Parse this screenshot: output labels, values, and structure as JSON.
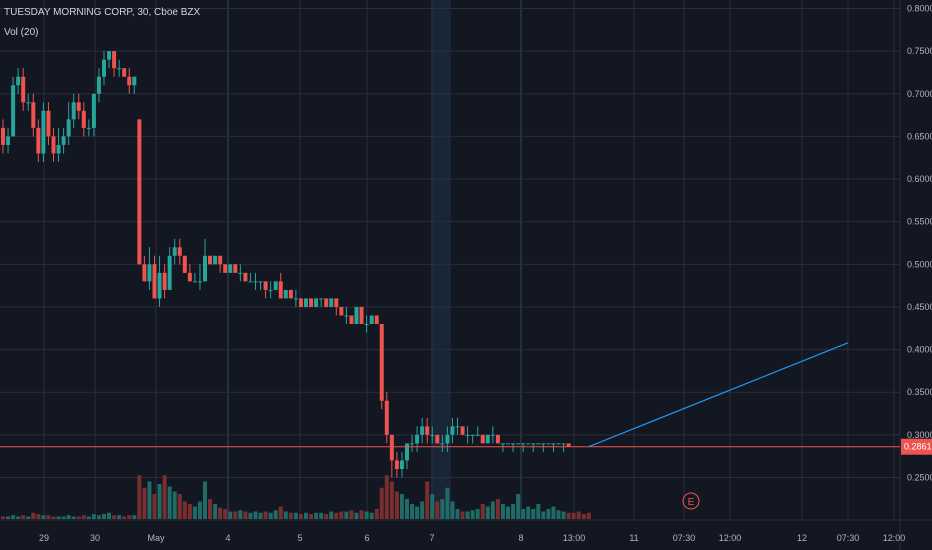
{
  "legend": {
    "title": "TUESDAY MORNING CORP, 30, Cboe BZX",
    "indicator": "Vol (20)"
  },
  "colors": {
    "background": "#131722",
    "grid": "#2a2e39",
    "up": "#26a69a",
    "down": "#ef5350",
    "volume_up": "#1f6b66",
    "volume_down": "#7a2e30",
    "trend_line": "#2196f3",
    "price_line": "#ef5350",
    "session_highlight": "#1e3048",
    "earnings_marker": "#ef5350"
  },
  "current_price_label": "0.2861",
  "earnings_marker_label": "E",
  "chart_data": {
    "type": "candlestick",
    "title": "TUESDAY MORNING CORP, 30, Cboe BZX",
    "indicator": "Vol (20)",
    "y_ticks": [
      "0.8000",
      "0.7500",
      "0.7000",
      "0.6500",
      "0.6000",
      "0.5500",
      "0.5000",
      "0.4500",
      "0.4000",
      "0.3500",
      "0.3000",
      "0.2500"
    ],
    "ylim": [
      0.22,
      0.8
    ],
    "x_ticks": [
      "29",
      "30",
      "May",
      "4",
      "5",
      "6",
      "7",
      "8",
      "13:00",
      "11",
      "07:30",
      "12:00",
      "12",
      "07:30",
      "12:00"
    ],
    "current_price": 0.2861,
    "ohlc": [
      [
        0.66,
        0.67,
        0.63,
        0.64
      ],
      [
        0.64,
        0.66,
        0.63,
        0.65
      ],
      [
        0.65,
        0.72,
        0.65,
        0.71
      ],
      [
        0.71,
        0.73,
        0.7,
        0.72
      ],
      [
        0.72,
        0.73,
        0.68,
        0.69
      ],
      [
        0.69,
        0.7,
        0.68,
        0.69
      ],
      [
        0.69,
        0.7,
        0.65,
        0.66
      ],
      [
        0.66,
        0.67,
        0.62,
        0.63
      ],
      [
        0.63,
        0.69,
        0.62,
        0.68
      ],
      [
        0.68,
        0.69,
        0.64,
        0.65
      ],
      [
        0.65,
        0.66,
        0.62,
        0.63
      ],
      [
        0.63,
        0.66,
        0.62,
        0.64
      ],
      [
        0.64,
        0.66,
        0.63,
        0.65
      ],
      [
        0.65,
        0.69,
        0.64,
        0.67
      ],
      [
        0.67,
        0.7,
        0.66,
        0.69
      ],
      [
        0.69,
        0.7,
        0.67,
        0.68
      ],
      [
        0.68,
        0.69,
        0.65,
        0.66
      ],
      [
        0.66,
        0.67,
        0.65,
        0.66
      ],
      [
        0.66,
        0.7,
        0.65,
        0.7
      ],
      [
        0.7,
        0.73,
        0.69,
        0.72
      ],
      [
        0.72,
        0.75,
        0.71,
        0.74
      ],
      [
        0.74,
        0.75,
        0.73,
        0.75
      ],
      [
        0.75,
        0.75,
        0.72,
        0.73
      ],
      [
        0.73,
        0.74,
        0.72,
        0.73
      ],
      [
        0.73,
        0.73,
        0.72,
        0.72
      ],
      [
        0.72,
        0.73,
        0.7,
        0.71
      ],
      [
        0.71,
        0.72,
        0.7,
        0.72
      ],
      [
        0.67,
        0.67,
        0.5,
        0.5
      ],
      [
        0.5,
        0.51,
        0.48,
        0.48
      ],
      [
        0.48,
        0.52,
        0.47,
        0.5
      ],
      [
        0.5,
        0.51,
        0.46,
        0.46
      ],
      [
        0.46,
        0.51,
        0.45,
        0.49
      ],
      [
        0.49,
        0.5,
        0.46,
        0.47
      ],
      [
        0.47,
        0.52,
        0.47,
        0.51
      ],
      [
        0.51,
        0.53,
        0.5,
        0.52
      ],
      [
        0.52,
        0.53,
        0.5,
        0.51
      ],
      [
        0.51,
        0.51,
        0.49,
        0.49
      ],
      [
        0.49,
        0.5,
        0.48,
        0.48
      ],
      [
        0.48,
        0.49,
        0.48,
        0.48
      ],
      [
        0.48,
        0.5,
        0.47,
        0.48
      ],
      [
        0.48,
        0.53,
        0.48,
        0.51
      ],
      [
        0.51,
        0.51,
        0.5,
        0.5
      ],
      [
        0.5,
        0.51,
        0.5,
        0.51
      ],
      [
        0.51,
        0.51,
        0.49,
        0.5
      ],
      [
        0.5,
        0.5,
        0.49,
        0.49
      ],
      [
        0.49,
        0.5,
        0.49,
        0.5
      ],
      [
        0.5,
        0.5,
        0.49,
        0.49
      ],
      [
        0.49,
        0.5,
        0.48,
        0.49
      ],
      [
        0.49,
        0.49,
        0.48,
        0.48
      ],
      [
        0.48,
        0.49,
        0.48,
        0.48
      ],
      [
        0.48,
        0.49,
        0.47,
        0.48
      ],
      [
        0.48,
        0.48,
        0.47,
        0.48
      ],
      [
        0.48,
        0.48,
        0.46,
        0.47
      ],
      [
        0.47,
        0.48,
        0.46,
        0.47
      ],
      [
        0.47,
        0.48,
        0.47,
        0.48
      ],
      [
        0.48,
        0.49,
        0.46,
        0.46
      ],
      [
        0.46,
        0.47,
        0.46,
        0.47
      ],
      [
        0.47,
        0.47,
        0.46,
        0.46
      ],
      [
        0.46,
        0.47,
        0.45,
        0.46
      ],
      [
        0.46,
        0.46,
        0.45,
        0.45
      ],
      [
        0.45,
        0.46,
        0.45,
        0.46
      ],
      [
        0.46,
        0.46,
        0.45,
        0.45
      ],
      [
        0.45,
        0.46,
        0.45,
        0.46
      ],
      [
        0.46,
        0.46,
        0.45,
        0.46
      ],
      [
        0.46,
        0.46,
        0.45,
        0.45
      ],
      [
        0.45,
        0.46,
        0.45,
        0.46
      ],
      [
        0.46,
        0.46,
        0.44,
        0.45
      ],
      [
        0.45,
        0.45,
        0.44,
        0.44
      ],
      [
        0.44,
        0.45,
        0.43,
        0.44
      ],
      [
        0.44,
        0.44,
        0.43,
        0.43
      ],
      [
        0.43,
        0.45,
        0.43,
        0.45
      ],
      [
        0.45,
        0.45,
        0.43,
        0.43
      ],
      [
        0.43,
        0.44,
        0.42,
        0.43
      ],
      [
        0.43,
        0.44,
        0.43,
        0.44
      ],
      [
        0.44,
        0.44,
        0.43,
        0.43
      ],
      [
        0.43,
        0.43,
        0.33,
        0.34
      ],
      [
        0.34,
        0.35,
        0.29,
        0.3
      ],
      [
        0.3,
        0.3,
        0.25,
        0.27
      ],
      [
        0.27,
        0.28,
        0.25,
        0.26
      ],
      [
        0.26,
        0.28,
        0.25,
        0.27
      ],
      [
        0.27,
        0.29,
        0.26,
        0.29
      ],
      [
        0.29,
        0.3,
        0.28,
        0.29
      ],
      [
        0.29,
        0.31,
        0.28,
        0.3
      ],
      [
        0.3,
        0.32,
        0.29,
        0.31
      ],
      [
        0.31,
        0.32,
        0.29,
        0.3
      ],
      [
        0.3,
        0.31,
        0.29,
        0.3
      ],
      [
        0.3,
        0.3,
        0.29,
        0.29
      ],
      [
        0.29,
        0.3,
        0.28,
        0.29
      ],
      [
        0.29,
        0.31,
        0.28,
        0.3
      ],
      [
        0.3,
        0.32,
        0.29,
        0.31
      ],
      [
        0.31,
        0.32,
        0.3,
        0.31
      ],
      [
        0.31,
        0.31,
        0.3,
        0.3
      ],
      [
        0.3,
        0.31,
        0.29,
        0.3
      ],
      [
        0.3,
        0.3,
        0.29,
        0.3
      ],
      [
        0.3,
        0.31,
        0.3,
        0.3
      ],
      [
        0.3,
        0.3,
        0.29,
        0.29
      ],
      [
        0.29,
        0.3,
        0.29,
        0.3
      ],
      [
        0.3,
        0.31,
        0.29,
        0.3
      ],
      [
        0.3,
        0.3,
        0.29,
        0.29
      ],
      [
        0.29,
        0.29,
        0.28,
        0.29
      ],
      [
        0.29,
        0.29,
        0.29,
        0.29
      ],
      [
        0.29,
        0.29,
        0.28,
        0.29
      ],
      [
        0.29,
        0.29,
        0.29,
        0.29
      ],
      [
        0.29,
        0.29,
        0.28,
        0.29
      ],
      [
        0.29,
        0.29,
        0.29,
        0.29
      ],
      [
        0.29,
        0.29,
        0.28,
        0.29
      ],
      [
        0.29,
        0.29,
        0.29,
        0.29
      ],
      [
        0.29,
        0.29,
        0.28,
        0.29
      ],
      [
        0.29,
        0.29,
        0.29,
        0.29
      ],
      [
        0.29,
        0.29,
        0.28,
        0.29
      ],
      [
        0.29,
        0.29,
        0.29,
        0.29
      ],
      [
        0.29,
        0.29,
        0.28,
        0.29
      ],
      [
        0.29,
        0.29,
        0.29,
        0.2861
      ]
    ],
    "volume": [
      2,
      2,
      3,
      2,
      3,
      2,
      5,
      4,
      3,
      3,
      2,
      2,
      2,
      3,
      2,
      2,
      3,
      2,
      4,
      3,
      4,
      5,
      3,
      3,
      2,
      3,
      3,
      35,
      25,
      30,
      20,
      28,
      35,
      26,
      22,
      20,
      14,
      12,
      10,
      14,
      30,
      16,
      12,
      9,
      8,
      6,
      6,
      7,
      6,
      5,
      6,
      5,
      6,
      5,
      7,
      10,
      6,
      5,
      5,
      4,
      5,
      4,
      5,
      5,
      4,
      6,
      5,
      6,
      6,
      7,
      5,
      7,
      6,
      5,
      8,
      25,
      35,
      30,
      22,
      20,
      16,
      12,
      10,
      14,
      30,
      20,
      14,
      16,
      25,
      14,
      8,
      6,
      6,
      7,
      8,
      12,
      10,
      14,
      16,
      12,
      10,
      12,
      20,
      8,
      10,
      8,
      12,
      6,
      8,
      10,
      7,
      6,
      5,
      5,
      6,
      4,
      5
    ],
    "volume_ylim": [
      0,
      60
    ],
    "trend_line": {
      "start": [
        116,
        0.2861
      ],
      "end": [
        160,
        0.408
      ]
    }
  }
}
